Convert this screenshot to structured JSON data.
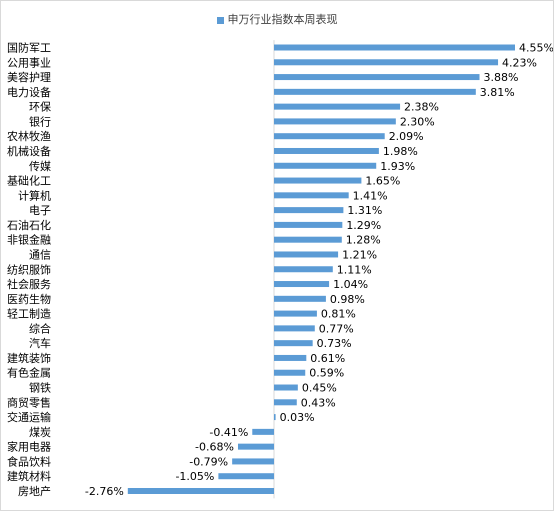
{
  "chart_data": {
    "type": "bar",
    "orientation": "horizontal",
    "legend": {
      "label": "申万行业指数本周表现",
      "position": "top"
    },
    "grid": false,
    "xlim": [
      -2.9,
      4.7
    ],
    "unit": "%",
    "bar_color": "#5b9bd5",
    "categories": [
      "国防军工",
      "公用事业",
      "美容护理",
      "电力设备",
      "环保",
      "银行",
      "农林牧渔",
      "机械设备",
      "传媒",
      "基础化工",
      "计算机",
      "电子",
      "石油石化",
      "非银金融",
      "通信",
      "纺织服饰",
      "社会服务",
      "医药生物",
      "轻工制造",
      "综合",
      "汽车",
      "建筑装饰",
      "有色金属",
      "钢铁",
      "商贸零售",
      "交通运输",
      "煤炭",
      "家用电器",
      "食品饮料",
      "建筑材料",
      "房地产"
    ],
    "values": [
      4.55,
      4.23,
      3.88,
      3.81,
      2.38,
      2.3,
      2.09,
      1.98,
      1.93,
      1.65,
      1.41,
      1.31,
      1.29,
      1.28,
      1.21,
      1.11,
      1.04,
      0.98,
      0.81,
      0.77,
      0.73,
      0.61,
      0.59,
      0.45,
      0.43,
      0.03,
      -0.41,
      -0.68,
      -0.79,
      -1.05,
      -2.76
    ],
    "data_labels": [
      "4.55%",
      "4.23%",
      "3.88%",
      "3.81%",
      "2.38%",
      "2.30%",
      "2.09%",
      "1.98%",
      "1.93%",
      "1.65%",
      "1.41%",
      "1.31%",
      "1.29%",
      "1.28%",
      "1.21%",
      "1.11%",
      "1.04%",
      "0.98%",
      "0.81%",
      "0.77%",
      "0.73%",
      "0.61%",
      "0.59%",
      "0.45%",
      "0.43%",
      "0.03%",
      "-0.41%",
      "-0.68%",
      "-0.79%",
      "-1.05%",
      "-2.76%"
    ]
  }
}
